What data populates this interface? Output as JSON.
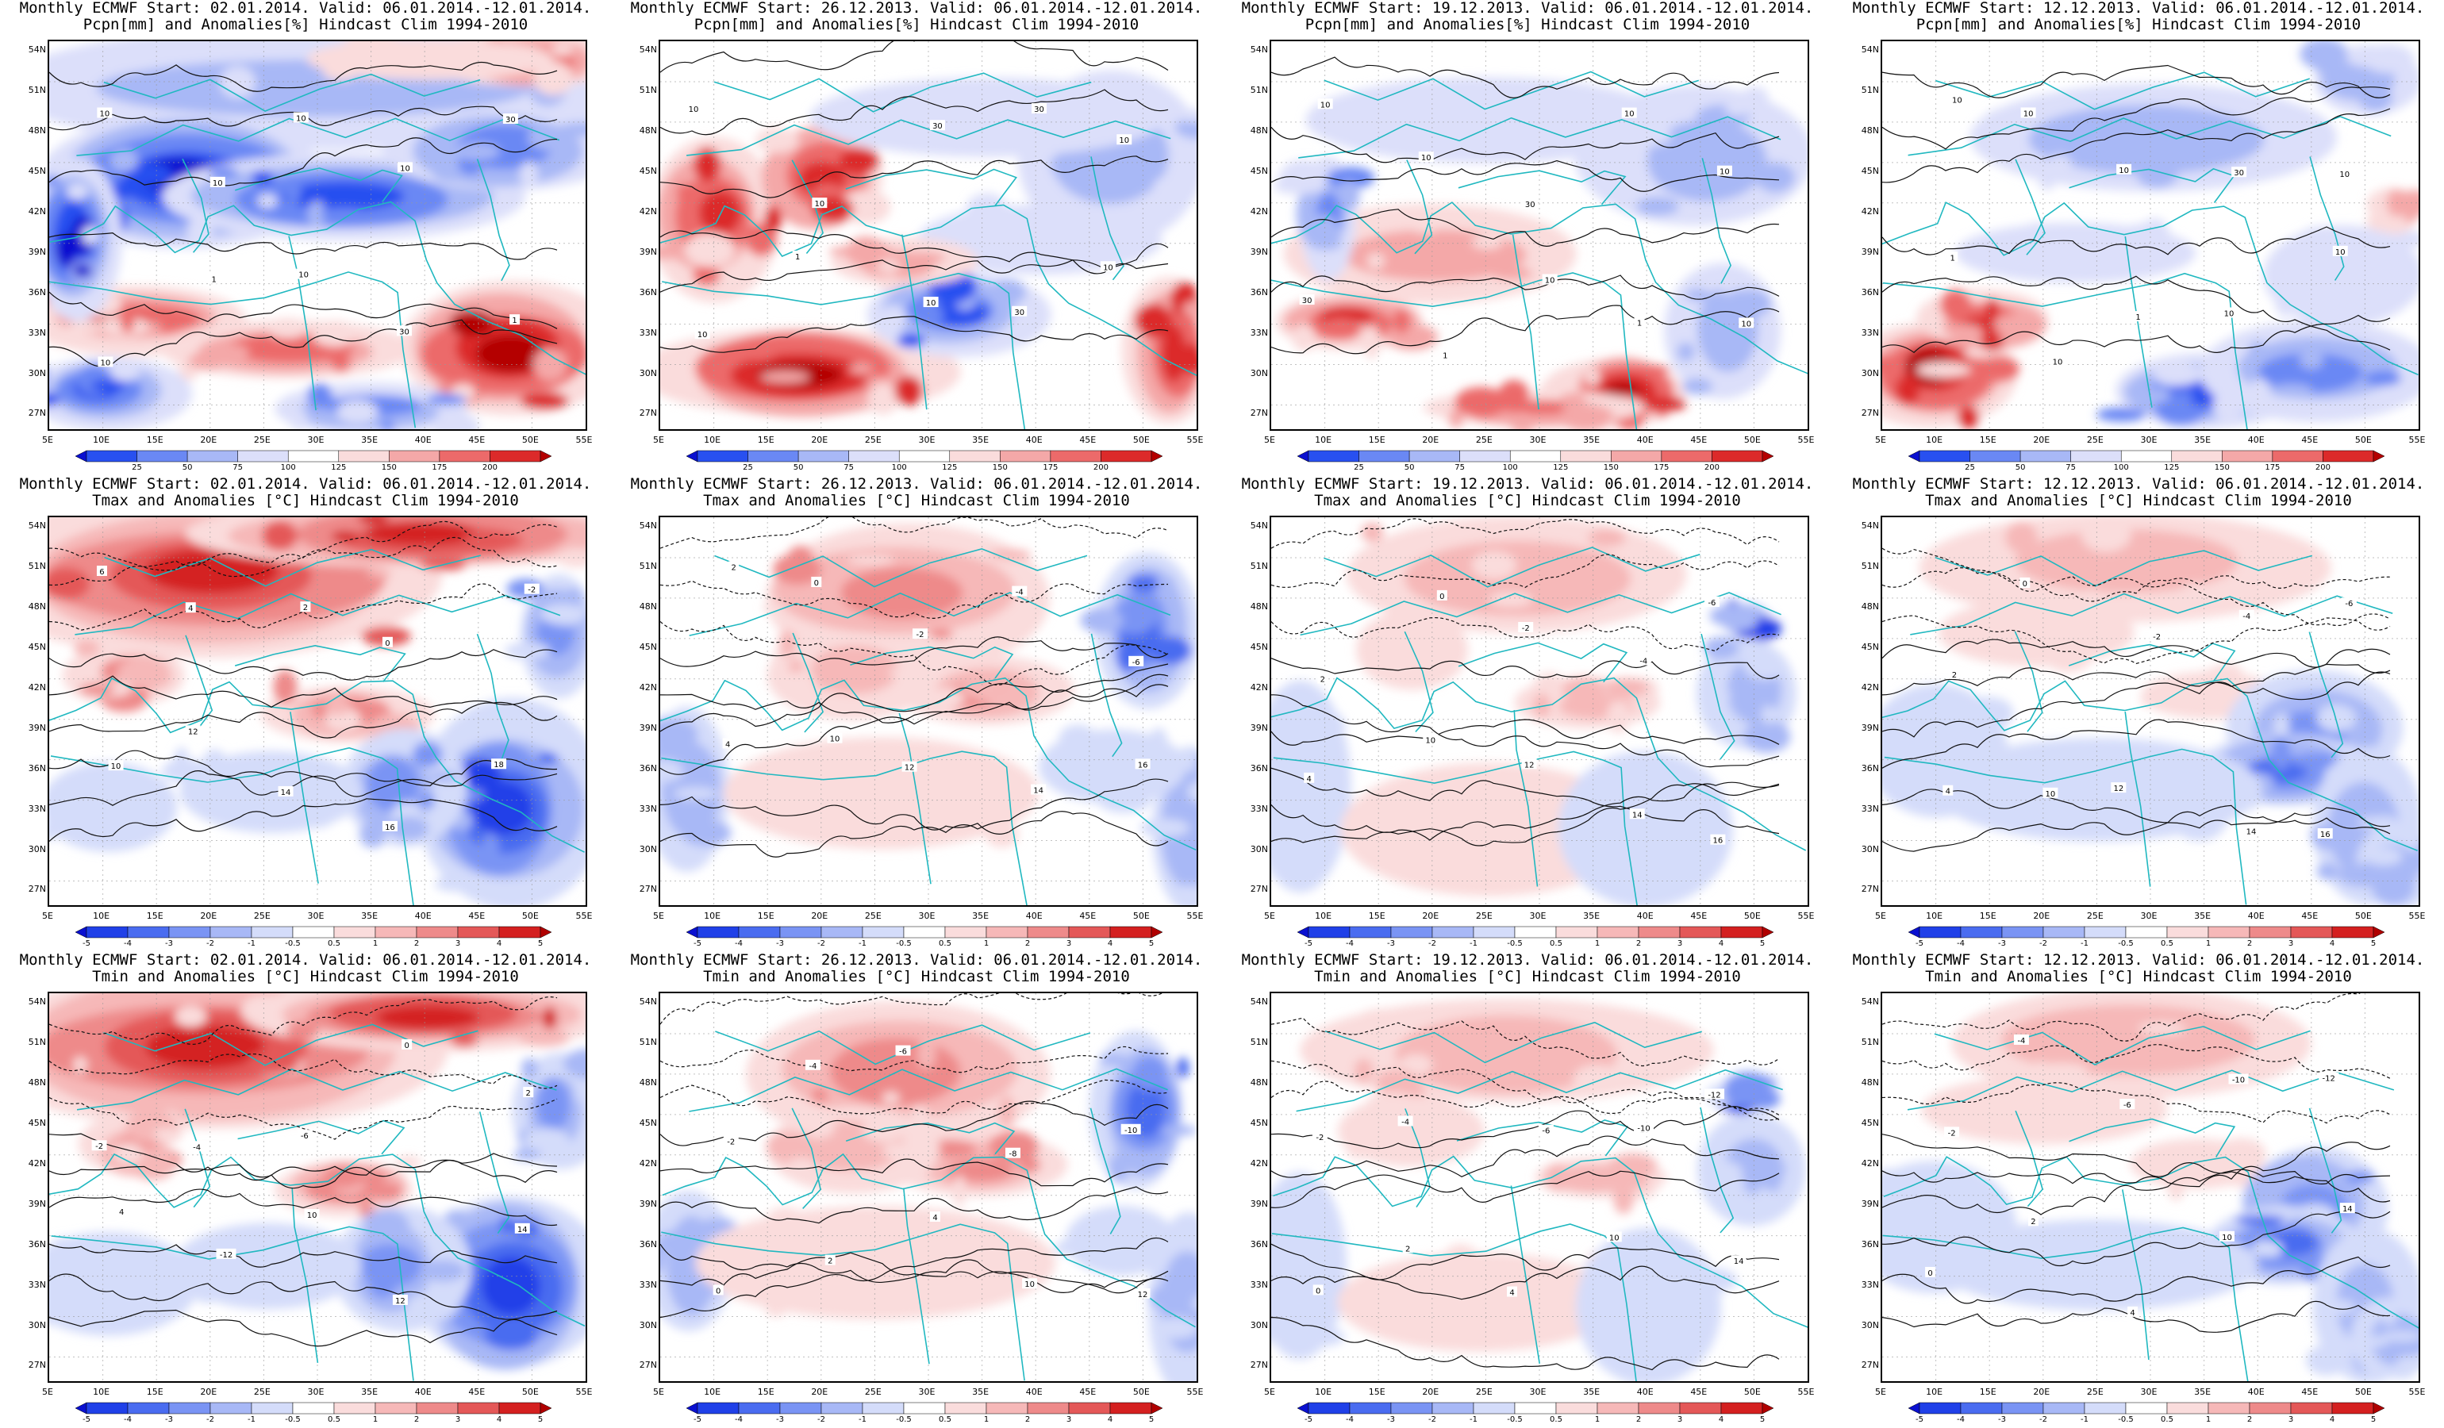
{
  "lat_ticks": [
    "54N",
    "51N",
    "48N",
    "45N",
    "42N",
    "39N",
    "36N",
    "33N",
    "30N",
    "27N"
  ],
  "lon_ticks": [
    "5E",
    "10E",
    "15E",
    "20E",
    "25E",
    "30E",
    "35E",
    "40E",
    "45E",
    "50E",
    "55E"
  ],
  "colorbars": {
    "pcpn": {
      "labels": [
        "25",
        "50",
        "75",
        "100",
        "125",
        "150",
        "175",
        "200"
      ],
      "colors": [
        "#0a10d0",
        "#2850f0",
        "#6a88f4",
        "#a8b8f6",
        "#dcdffa",
        "#ffffff",
        "#fadcdc",
        "#f4a8a8",
        "#ec6a6a",
        "#dc2a2a",
        "#b40000"
      ]
    },
    "temp": {
      "labels": [
        "-5",
        "-4",
        "-3",
        "-2",
        "-1",
        "-0.5",
        "0.5",
        "1",
        "2",
        "3",
        "4",
        "5"
      ],
      "colors": [
        "#0a10d0",
        "#2040e8",
        "#4a6cf0",
        "#7a94f4",
        "#a8b8f6",
        "#d4dcfa",
        "#ffffff",
        "#fadcdc",
        "#f6b8b8",
        "#ee8a8a",
        "#e45858",
        "#d42020",
        "#b00000"
      ]
    }
  },
  "panels": [
    {
      "title1": "Monthly ECMWF Start: 02.01.2014. Valid: 06.01.2014.-12.01.2014.",
      "title2": "Pcpn[mm] and Anomalies[%] Hindcast Clim 1994-2010",
      "type": "pcpn",
      "scenario": "p1",
      "contours": [
        "10",
        "10",
        "10",
        "10",
        "30",
        "10",
        "1",
        "10",
        "30",
        "1"
      ]
    },
    {
      "title1": "Monthly ECMWF Start: 26.12.2013. Valid: 06.01.2014.-12.01.2014.",
      "title2": "Pcpn[mm] and Anomalies[%] Hindcast Clim 1994-2010",
      "type": "pcpn",
      "scenario": "p2",
      "contours": [
        "10",
        "10",
        "30",
        "30",
        "10",
        "10",
        "1",
        "10",
        "30",
        "10"
      ]
    },
    {
      "title1": "Monthly ECMWF Start: 19.12.2013. Valid: 06.01.2014.-12.01.2014.",
      "title2": "Pcpn[mm] and Anomalies[%] Hindcast Clim 1994-2010",
      "type": "pcpn",
      "scenario": "p3",
      "contours": [
        "10",
        "10",
        "30",
        "10",
        "10",
        "30",
        "1",
        "10",
        "1",
        "10"
      ]
    },
    {
      "title1": "Monthly ECMWF Start: 12.12.2013. Valid: 06.01.2014.-12.01.2014.",
      "title2": "Pcpn[mm] and Anomalies[%] Hindcast Clim 1994-2010",
      "type": "pcpn",
      "scenario": "p4",
      "contours": [
        "10",
        "10",
        "10",
        "30",
        "10",
        "1",
        "10",
        "1",
        "10",
        "10"
      ]
    },
    {
      "title1": "Monthly ECMWF Start: 02.01.2014. Valid: 06.01.2014.-12.01.2014.",
      "title2": "Tmax and Anomalies [°C] Hindcast Clim 1994-2010",
      "type": "temp",
      "scenario": "w1",
      "contours": [
        "6",
        "4",
        "2",
        "0",
        "-2",
        "10",
        "12",
        "14",
        "16",
        "18"
      ]
    },
    {
      "title1": "Monthly ECMWF Start: 26.12.2013. Valid: 06.01.2014.-12.01.2014.",
      "title2": "Tmax and Anomalies [°C] Hindcast Clim 1994-2010",
      "type": "temp",
      "scenario": "w2",
      "contours": [
        "2",
        "0",
        "-2",
        "-4",
        "-6",
        "4",
        "10",
        "12",
        "14",
        "16"
      ]
    },
    {
      "title1": "Monthly ECMWF Start: 19.12.2013. Valid: 06.01.2014.-12.01.2014.",
      "title2": "Tmax and Anomalies [°C] Hindcast Clim 1994-2010",
      "type": "temp",
      "scenario": "w3",
      "contours": [
        "2",
        "0",
        "-2",
        "-4",
        "-6",
        "4",
        "10",
        "12",
        "14",
        "16"
      ]
    },
    {
      "title1": "Monthly ECMWF Start: 12.12.2013. Valid: 06.01.2014.-12.01.2014.",
      "title2": "Tmax and Anomalies [°C] Hindcast Clim 1994-2010",
      "type": "temp",
      "scenario": "w4",
      "contours": [
        "2",
        "0",
        "-2",
        "-4",
        "-6",
        "4",
        "10",
        "12",
        "14",
        "16"
      ]
    },
    {
      "title1": "Monthly ECMWF Start: 02.01.2014. Valid: 06.01.2014.-12.01.2014.",
      "title2": "Tmin and Anomalies [°C] Hindcast Clim 1994-2010",
      "type": "temp",
      "scenario": "w1",
      "contours": [
        "-2",
        "-4",
        "-6",
        "0",
        "2",
        "4",
        "-12",
        "10",
        "12",
        "14"
      ]
    },
    {
      "title1": "Monthly ECMWF Start: 26.12.2013. Valid: 06.01.2014.-12.01.2014.",
      "title2": "Tmin and Anomalies [°C] Hindcast Clim 1994-2010",
      "type": "temp",
      "scenario": "w2",
      "contours": [
        "-2",
        "-4",
        "-6",
        "-8",
        "-10",
        "0",
        "2",
        "4",
        "10",
        "12"
      ]
    },
    {
      "title1": "Monthly ECMWF Start: 19.12.2013. Valid: 06.01.2014.-12.01.2014.",
      "title2": "Tmin and Anomalies [°C] Hindcast Clim 1994-2010",
      "type": "temp",
      "scenario": "w3",
      "contours": [
        "-2",
        "-4",
        "-6",
        "-10",
        "-12",
        "0",
        "2",
        "4",
        "10",
        "14"
      ]
    },
    {
      "title1": "Monthly ECMWF Start: 12.12.2013. Valid: 06.01.2014.-12.01.2014.",
      "title2": "Tmin and Anomalies [°C] Hindcast Clim 1994-2010",
      "type": "temp",
      "scenario": "w4",
      "contours": [
        "-2",
        "-4",
        "-6",
        "-10",
        "-12",
        "0",
        "2",
        "4",
        "10",
        "14"
      ]
    }
  ]
}
